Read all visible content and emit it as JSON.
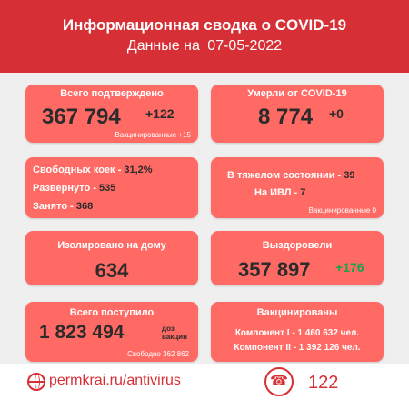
{
  "header": {
    "title": "Информационная сводка о COVID-19",
    "subtitle_prefix": "Данные на",
    "date": "07-05-2022"
  },
  "cards": {
    "confirmed": {
      "label": "Всего подтверждено",
      "value": "367 794",
      "delta": "+122",
      "note": "Вакцинированные +15"
    },
    "deaths": {
      "label": "Умерли от COVID-19",
      "value": "8 774",
      "delta": "+0"
    },
    "beds": {
      "free_label": "Свободных коек",
      "free_value": "31,2%",
      "deployed_label": "Развернуто",
      "deployed_value": "535",
      "occupied_label": "Занято",
      "occupied_value": "368"
    },
    "severe": {
      "severe_label": "В тяжелом состоянии",
      "severe_value": "39",
      "ivl_label": "На ИВЛ",
      "ivl_value": "7",
      "vaccinated_note": "Вакцинированные 0"
    },
    "home_isolation": {
      "label": "Изолировано на дому",
      "value": "634"
    },
    "recovered": {
      "label": "Выздоровели",
      "value": "357 897",
      "delta": "+176"
    },
    "doses_received": {
      "label": "Всего поступило",
      "value": "1 823 494",
      "unit_line1": "доз",
      "unit_line2": "вакцин",
      "free_note": "Свободно 362 862"
    },
    "vaccinated": {
      "label": "Вакцинированы",
      "comp1": "Компонент I - 1 460 632 чел.",
      "comp2": "Компонент II - 1 392 126 чел."
    }
  },
  "footer": {
    "site": "permkrai.ru/antivirus",
    "phone": "122",
    "globe_icon": "globe-icon",
    "phone_icon": "phone-icon"
  },
  "colors": {
    "header": "#d62f35",
    "card": "#ff6a65",
    "green": "#17a34a"
  }
}
